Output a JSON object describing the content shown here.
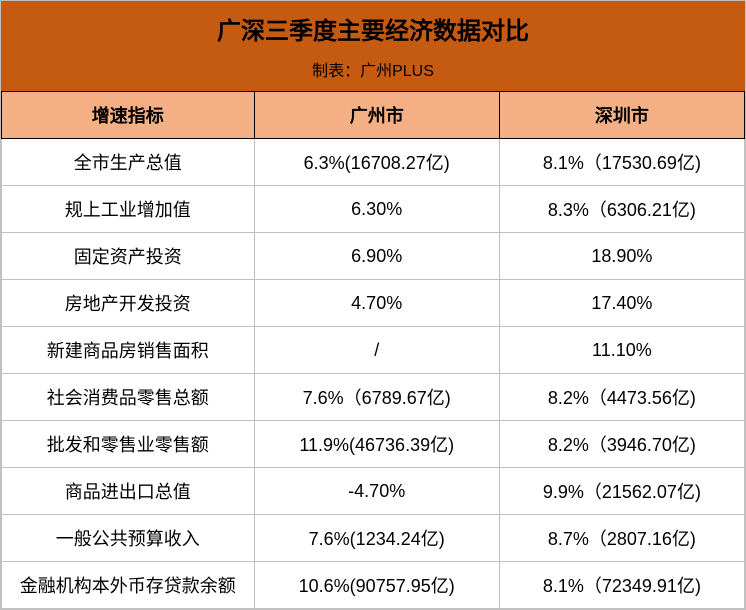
{
  "title": "广深三季度主要经济数据对比",
  "subtitle": "制表：广州PLUS",
  "columns": [
    "增速指标",
    "广州市",
    "深圳市"
  ],
  "rows": [
    [
      "全市生产总值",
      "6.3%(16708.27亿)",
      "8.1%（17530.69亿)"
    ],
    [
      "规上工业增加值",
      "6.30%",
      "8.3%（6306.21亿)"
    ],
    [
      "固定资产投资",
      "6.90%",
      "18.90%"
    ],
    [
      "房地产开发投资",
      "4.70%",
      "17.40%"
    ],
    [
      "新建商品房销售面积",
      "/",
      "11.10%"
    ],
    [
      "社会消费品零售总额",
      "7.6%（6789.67亿)",
      "8.2%（4473.56亿)"
    ],
    [
      "批发和零售业零售额",
      "11.9%(46736.39亿)",
      "8.2%（3946.70亿)"
    ],
    [
      "商品进出口总值",
      "-4.70%",
      "9.9%（21562.07亿)"
    ],
    [
      "一般公共预算收入",
      "7.6%(1234.24亿)",
      "8.7%（2807.16亿)"
    ],
    [
      "金融机构本外币存贷款余额",
      "10.6%(90757.95亿)",
      "8.1%（72349.91亿)"
    ]
  ],
  "colors": {
    "title_bg": "#c55a11",
    "header_bg": "#f4b084",
    "border_header": "#000000",
    "border_body": "#c0c0c0",
    "text": "#000000"
  }
}
